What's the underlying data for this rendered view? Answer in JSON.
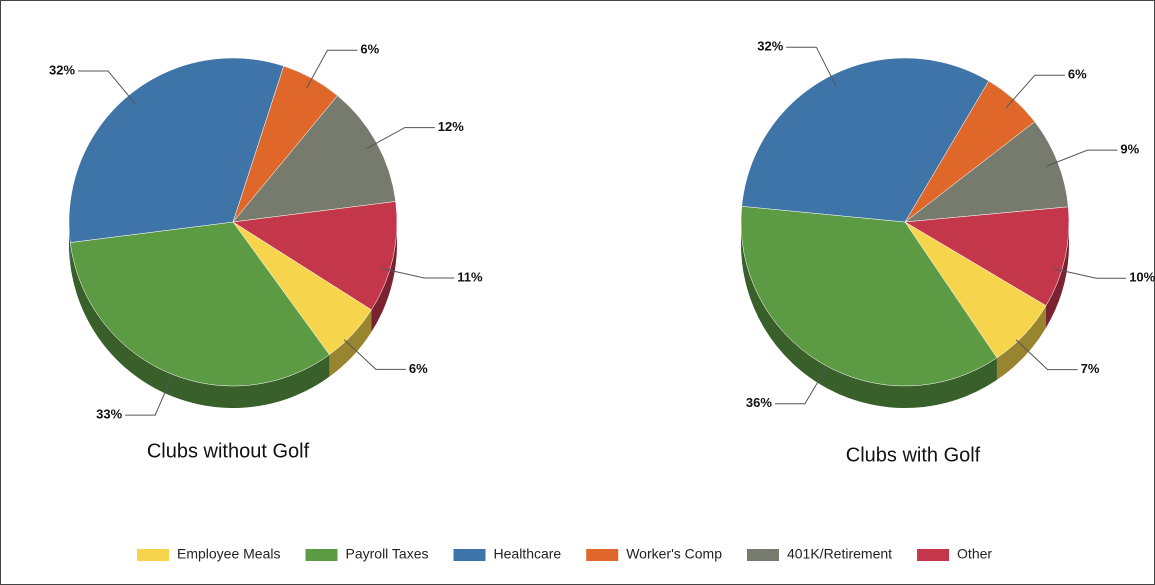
{
  "chart_data": [
    {
      "type": "pie",
      "title": "Clubs without Golf",
      "values": [
        6,
        33,
        32,
        6,
        12,
        11
      ],
      "value_labels": [
        "6%",
        "33%",
        "32%",
        "6%",
        "12%",
        "11%"
      ]
    },
    {
      "type": "pie",
      "title": "Clubs with Golf",
      "values": [
        7,
        36,
        32,
        6,
        9,
        10
      ],
      "value_labels": [
        "7%",
        "36%",
        "32%",
        "6%",
        "9%",
        "10%"
      ]
    }
  ],
  "legend": {
    "labels": [
      "Employee Meals",
      "Payroll Taxes",
      "Healthcare",
      "Worker's Comp",
      "401K/Retirement",
      "Other"
    ],
    "colors": [
      "#f6d54c",
      "#5c9a43",
      "#3f74a8",
      "#e0672a",
      "#767b6e",
      "#c4374b"
    ]
  }
}
